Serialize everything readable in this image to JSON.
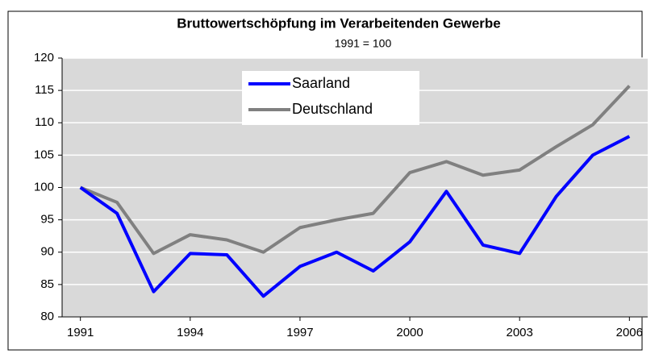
{
  "chart_data": {
    "type": "line",
    "title": "Bruttowertschöpfung im Verarbeitenden Gewerbe",
    "subtitle": "1991 = 100",
    "x": [
      1991,
      1992,
      1993,
      1994,
      1995,
      1996,
      1997,
      1998,
      1999,
      2000,
      2001,
      2002,
      2003,
      2004,
      2005,
      2006
    ],
    "series": [
      {
        "name": "Saarland",
        "color": "#0000ff",
        "values": [
          100,
          96,
          83.9,
          89.8,
          89.6,
          83.2,
          87.8,
          90,
          87.1,
          91.6,
          99.4,
          91.1,
          89.8,
          98.6,
          105,
          107.9
        ]
      },
      {
        "name": "Deutschland",
        "color": "#808080",
        "values": [
          100,
          97.7,
          89.8,
          92.7,
          91.9,
          90,
          93.8,
          95,
          96,
          102.3,
          104,
          101.9,
          102.7,
          106.3,
          109.7,
          115.7
        ]
      }
    ],
    "xlim": [
      1990.5,
      2006.5
    ],
    "xticks": [
      1991,
      1994,
      1997,
      2000,
      2003,
      2006
    ],
    "ylim": [
      80,
      120
    ],
    "yticks": [
      80,
      85,
      90,
      95,
      100,
      105,
      110,
      115,
      120
    ],
    "grid": true,
    "legend": "top"
  }
}
